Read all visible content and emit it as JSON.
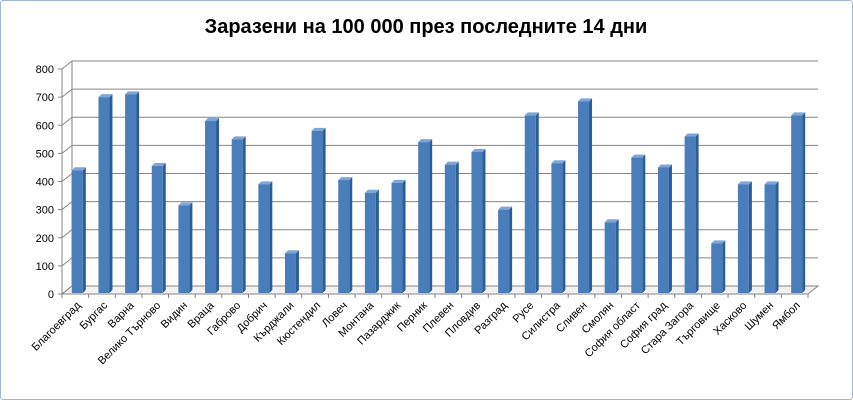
{
  "chart_data": {
    "type": "bar",
    "title": "Заразени на 100 000 през последните 14 дни",
    "xlabel": "",
    "ylabel": "",
    "ylim": [
      0,
      800
    ],
    "yticks": [
      0,
      100,
      200,
      300,
      400,
      500,
      600,
      700,
      800
    ],
    "grid": true,
    "legend": "none",
    "bar_color": "#4a7ebb",
    "categories": [
      "Благоевград",
      "Бургас",
      "Варна",
      "Велико Търново",
      "Видин",
      "Враца",
      "Габрово",
      "Добрич",
      "Кърджали",
      "Кюстендил",
      "Ловеч",
      "Монтана",
      "Пазарджик",
      "Перник",
      "Плевен",
      "Пловдив",
      "Разград",
      "Русе",
      "Силистра",
      "Сливен",
      "Смолян",
      "София област",
      "София град",
      "Стара Загора",
      "Търговище",
      "Хасково",
      "Шумен",
      "Ямбол"
    ],
    "values": [
      440,
      700,
      710,
      455,
      315,
      615,
      550,
      390,
      145,
      580,
      405,
      360,
      395,
      540,
      460,
      505,
      300,
      635,
      465,
      685,
      255,
      485,
      450,
      560,
      180,
      390,
      390,
      635
    ]
  }
}
